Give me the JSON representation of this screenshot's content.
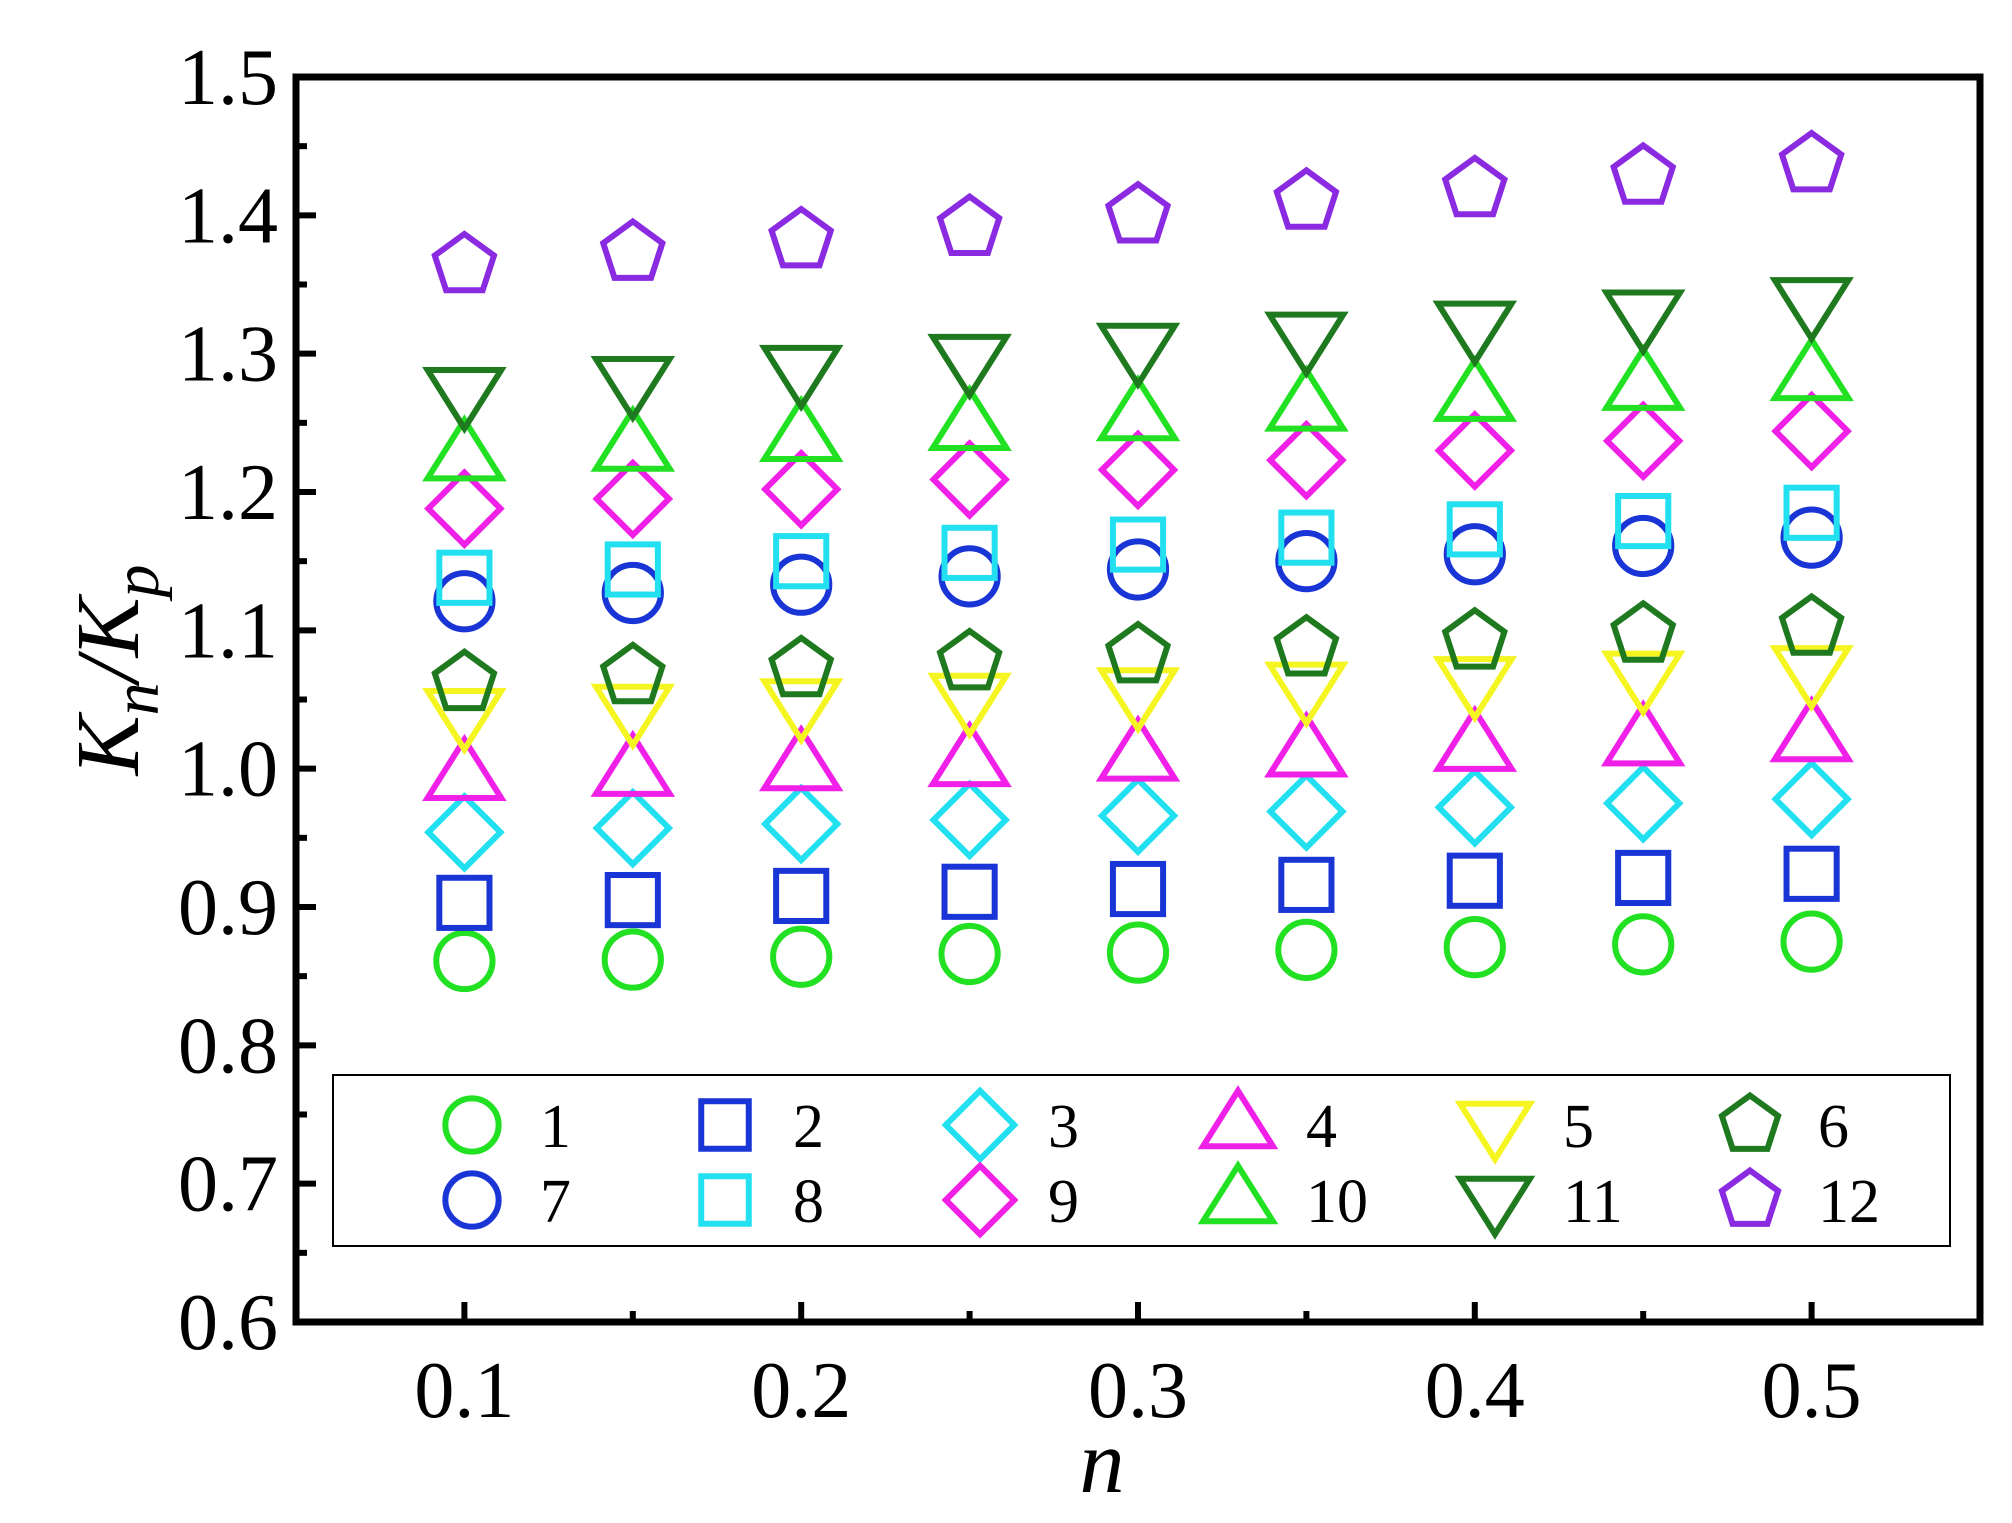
{
  "chart_data": {
    "type": "scatter",
    "title": "",
    "xlabel": "n",
    "ylabel": {
      "main": "K",
      "sub1": "n",
      "slash": "/K",
      "sub2": "p"
    },
    "xlim": [
      0.05,
      0.55
    ],
    "ylim": [
      0.6,
      1.5
    ],
    "x_ticks": [
      "0.1",
      "0.2",
      "0.3",
      "0.4",
      "0.5"
    ],
    "x_tick_values": [
      0.1,
      0.2,
      0.3,
      0.4,
      0.5
    ],
    "y_ticks": [
      "0.6",
      "0.7",
      "0.8",
      "0.9",
      "1.0",
      "1.1",
      "1.2",
      "1.3",
      "1.4",
      "1.5"
    ],
    "y_tick_values": [
      0.6,
      0.7,
      0.8,
      0.9,
      1.0,
      1.1,
      1.2,
      1.3,
      1.4,
      1.5
    ],
    "grid": false,
    "legend_position": "bottom-inside",
    "x": [
      0.1,
      0.15,
      0.2,
      0.25,
      0.3,
      0.35,
      0.4,
      0.45,
      0.5
    ],
    "series": [
      {
        "name": "1",
        "marker": "circle",
        "color": "#22e022",
        "values": [
          0.861,
          0.862,
          0.864,
          0.866,
          0.867,
          0.869,
          0.871,
          0.873,
          0.875
        ]
      },
      {
        "name": "2",
        "marker": "square",
        "color": "#1a35d6",
        "values": [
          0.903,
          0.905,
          0.908,
          0.911,
          0.913,
          0.916,
          0.919,
          0.921,
          0.924
        ]
      },
      {
        "name": "3",
        "marker": "diamond",
        "color": "#22e0f0",
        "values": [
          0.954,
          0.957,
          0.96,
          0.963,
          0.966,
          0.969,
          0.972,
          0.975,
          0.978
        ]
      },
      {
        "name": "4",
        "marker": "triangle",
        "color": "#f020e8",
        "values": [
          0.995,
          0.998,
          1.002,
          1.005,
          1.009,
          1.012,
          1.016,
          1.02,
          1.023
        ]
      },
      {
        "name": "5",
        "marker": "tri-down",
        "color": "#f5f522",
        "values": [
          1.04,
          1.043,
          1.047,
          1.051,
          1.055,
          1.059,
          1.063,
          1.067,
          1.071
        ]
      },
      {
        "name": "6",
        "marker": "pentagon",
        "color": "#1f7a1f",
        "values": [
          1.062,
          1.067,
          1.072,
          1.077,
          1.082,
          1.087,
          1.092,
          1.097,
          1.102
        ]
      },
      {
        "name": "7",
        "marker": "circle",
        "color": "#1a35d6",
        "values": [
          1.121,
          1.127,
          1.133,
          1.139,
          1.144,
          1.15,
          1.155,
          1.161,
          1.167
        ]
      },
      {
        "name": "8",
        "marker": "square",
        "color": "#22e0f0",
        "values": [
          1.138,
          1.144,
          1.15,
          1.156,
          1.162,
          1.167,
          1.173,
          1.179,
          1.185
        ]
      },
      {
        "name": "9",
        "marker": "diamond",
        "color": "#f020e8",
        "values": [
          1.188,
          1.195,
          1.202,
          1.209,
          1.216,
          1.223,
          1.23,
          1.237,
          1.244
        ]
      },
      {
        "name": "10",
        "marker": "triangle",
        "color": "#22e022",
        "values": [
          1.226,
          1.233,
          1.24,
          1.248,
          1.255,
          1.262,
          1.269,
          1.277,
          1.284
        ]
      },
      {
        "name": "11",
        "marker": "tri-down",
        "color": "#1f7a1f",
        "values": [
          1.272,
          1.28,
          1.288,
          1.296,
          1.304,
          1.312,
          1.32,
          1.328,
          1.337
        ]
      },
      {
        "name": "12",
        "marker": "pentagon",
        "color": "#8a2be2",
        "values": [
          1.364,
          1.373,
          1.382,
          1.391,
          1.4,
          1.41,
          1.419,
          1.428,
          1.437
        ]
      }
    ]
  }
}
